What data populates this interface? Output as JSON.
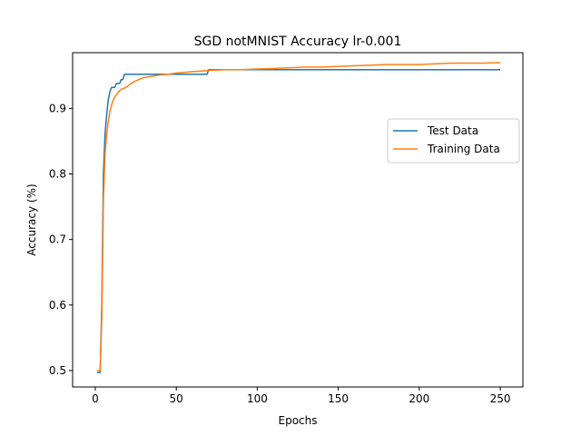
{
  "chart_data": {
    "type": "line",
    "title": "SGD notMNIST Accuracy lr-0.001",
    "xlabel": "Epochs",
    "ylabel": "Accuracy (%)",
    "xlim": [
      -14,
      264
    ],
    "ylim": [
      0.475,
      0.985
    ],
    "xticks": [
      0,
      50,
      100,
      150,
      200,
      250
    ],
    "xtick_labels": [
      "0",
      "50",
      "100",
      "150",
      "200",
      "250"
    ],
    "yticks": [
      0.5,
      0.6,
      0.7,
      0.8,
      0.9
    ],
    "ytick_labels": [
      "0.5",
      "0.6",
      "0.7",
      "0.8",
      "0.9"
    ],
    "grid": false,
    "legend_position": "center-right",
    "series": [
      {
        "name": "Test Data",
        "color": "#1f77b4",
        "points": [
          [
            1,
            0.497
          ],
          [
            2,
            0.497
          ],
          [
            3,
            0.497
          ],
          [
            4,
            0.6
          ],
          [
            5,
            0.8
          ],
          [
            6,
            0.86
          ],
          [
            7,
            0.89
          ],
          [
            8,
            0.913
          ],
          [
            9,
            0.925
          ],
          [
            10,
            0.932
          ],
          [
            11,
            0.932
          ],
          [
            12,
            0.932
          ],
          [
            13,
            0.938
          ],
          [
            14,
            0.938
          ],
          [
            15,
            0.938
          ],
          [
            16,
            0.944
          ],
          [
            17,
            0.944
          ],
          [
            18,
            0.952
          ],
          [
            20,
            0.952
          ],
          [
            30,
            0.952
          ],
          [
            40,
            0.952
          ],
          [
            50,
            0.952
          ],
          [
            60,
            0.952
          ],
          [
            69,
            0.952
          ],
          [
            70,
            0.959
          ],
          [
            100,
            0.959
          ],
          [
            150,
            0.959
          ],
          [
            200,
            0.959
          ],
          [
            250,
            0.959
          ]
        ]
      },
      {
        "name": "Training Data",
        "color": "#ff7f0e",
        "points": [
          [
            1,
            0.5
          ],
          [
            2,
            0.5
          ],
          [
            3,
            0.5
          ],
          [
            4,
            0.58
          ],
          [
            5,
            0.76
          ],
          [
            6,
            0.83
          ],
          [
            7,
            0.86
          ],
          [
            8,
            0.88
          ],
          [
            9,
            0.895
          ],
          [
            10,
            0.905
          ],
          [
            11,
            0.912
          ],
          [
            12,
            0.917
          ],
          [
            13,
            0.921
          ],
          [
            14,
            0.924
          ],
          [
            15,
            0.927
          ],
          [
            16,
            0.929
          ],
          [
            18,
            0.931
          ],
          [
            20,
            0.934
          ],
          [
            22,
            0.938
          ],
          [
            25,
            0.942
          ],
          [
            28,
            0.945
          ],
          [
            30,
            0.947
          ],
          [
            35,
            0.949
          ],
          [
            40,
            0.951
          ],
          [
            45,
            0.952
          ],
          [
            50,
            0.954
          ],
          [
            55,
            0.955
          ],
          [
            60,
            0.956
          ],
          [
            65,
            0.957
          ],
          [
            70,
            0.958
          ],
          [
            80,
            0.959
          ],
          [
            90,
            0.959
          ],
          [
            100,
            0.96
          ],
          [
            110,
            0.961
          ],
          [
            120,
            0.962
          ],
          [
            130,
            0.963
          ],
          [
            140,
            0.963
          ],
          [
            150,
            0.964
          ],
          [
            160,
            0.965
          ],
          [
            170,
            0.966
          ],
          [
            180,
            0.967
          ],
          [
            190,
            0.967
          ],
          [
            200,
            0.967
          ],
          [
            210,
            0.968
          ],
          [
            220,
            0.969
          ],
          [
            230,
            0.969
          ],
          [
            240,
            0.969
          ],
          [
            250,
            0.97
          ]
        ]
      }
    ]
  }
}
